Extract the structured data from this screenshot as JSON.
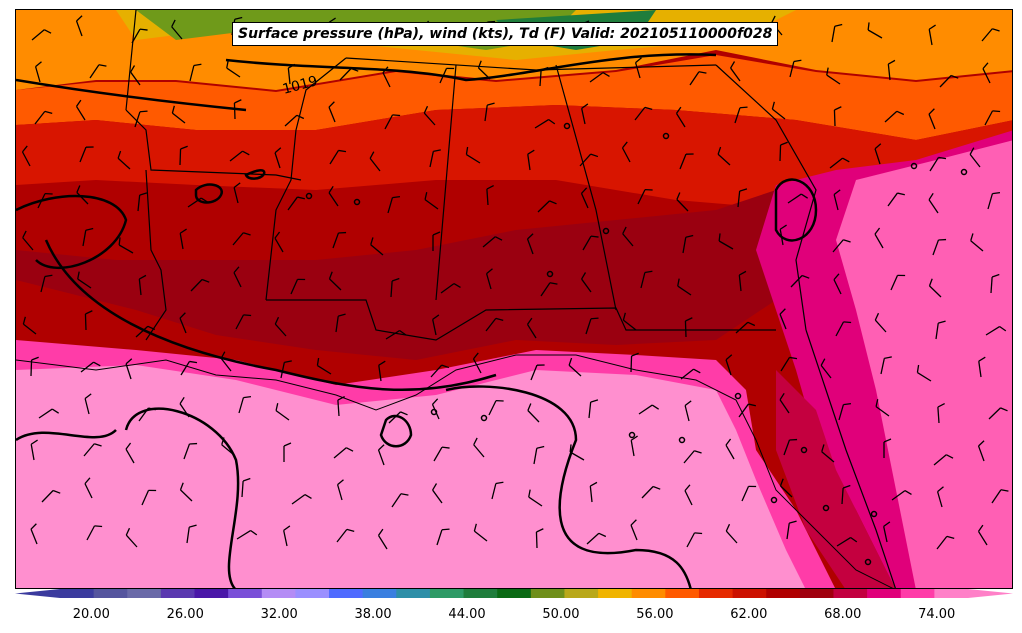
{
  "map": {
    "title": "Surface pressure (hPa), wind (kts), Td (F) Valid: 202105110000f028",
    "isobar_label": "1019",
    "isobar_color": "#000000",
    "boundary_color": "#000000"
  },
  "colorbar": {
    "min": 18,
    "max": 76,
    "step": 2,
    "ticks": [
      "20.00",
      "26.00",
      "32.00",
      "38.00",
      "44.00",
      "50.00",
      "56.00",
      "62.00",
      "68.00",
      "74.00"
    ],
    "tick_values": [
      20,
      26,
      32,
      38,
      44,
      50,
      56,
      62,
      68,
      74
    ],
    "colors": [
      "#3b3b9e",
      "#55559e",
      "#6a6aa8",
      "#5b39b0",
      "#4a17a8",
      "#7a4fd8",
      "#b48cf5",
      "#9b8fff",
      "#4f6bff",
      "#3a7fe0",
      "#2e8fa8",
      "#2e9a66",
      "#1f7d3c",
      "#0a6a14",
      "#6f8f1a",
      "#b9a81a",
      "#f0b400",
      "#ff8c00",
      "#ff5a00",
      "#e62a00",
      "#cc1100",
      "#b00000",
      "#a0000e",
      "#c20040",
      "#e0007a",
      "#ff3ca8",
      "#ff80c8"
    ]
  }
}
